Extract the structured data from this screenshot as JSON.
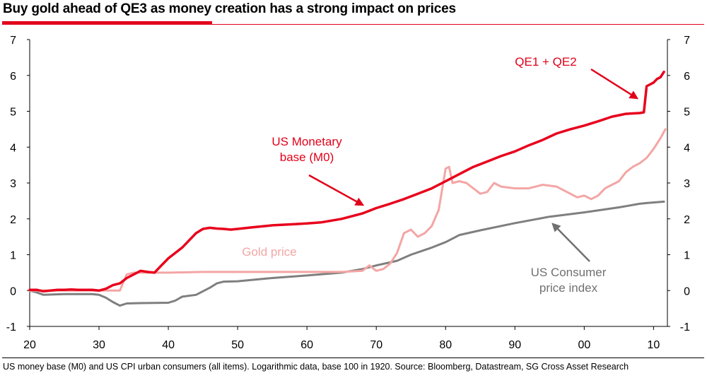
{
  "title": "Buy gold ahead of QE3 as money creation has a strong impact on prices",
  "footnote": "US money base (M0) and US CPI urban consumers (all items). Logarithmic data, base 100 in 1920. Source: Bloomberg, Datastream, SG Cross Asset Research",
  "colors": {
    "accent": "#e1001a",
    "monetary_base": "#e8001c",
    "gold": "#f4a5a5",
    "cpi": "#7f7f7f"
  },
  "chart_data": {
    "type": "line",
    "x_tick_labels": [
      "20",
      "30",
      "40",
      "50",
      "60",
      "70",
      "80",
      "90",
      "00",
      "10"
    ],
    "x_tick_years": [
      1920,
      1930,
      1940,
      1950,
      1960,
      1970,
      1980,
      1990,
      2000,
      2010
    ],
    "xlim": [
      1920,
      2012
    ],
    "y_ticks": [
      -1,
      0,
      1,
      2,
      3,
      4,
      5,
      6,
      7
    ],
    "ylim": [
      -1,
      7
    ],
    "y_right_ticks": [
      -1,
      0,
      1,
      2,
      3,
      4,
      5,
      6,
      7
    ],
    "grid": false,
    "series": [
      {
        "key": "monetary_base",
        "x": [
          1920,
          1921,
          1922,
          1923,
          1924,
          1925,
          1926,
          1927,
          1928,
          1929,
          1930,
          1931,
          1932,
          1933,
          1934,
          1935,
          1936,
          1937,
          1938,
          1939,
          1940,
          1941,
          1942,
          1943,
          1944,
          1945,
          1946,
          1947,
          1948,
          1949,
          1950,
          1952,
          1955,
          1958,
          1960,
          1962,
          1965,
          1968,
          1970,
          1972,
          1974,
          1976,
          1978,
          1980,
          1982,
          1984,
          1986,
          1988,
          1990,
          1992,
          1994,
          1996,
          1998,
          2000,
          2002,
          2004,
          2006,
          2008,
          2008.6,
          2009,
          2010,
          2010.5,
          2011,
          2011.5
        ],
        "y": [
          0.02,
          0.02,
          -0.02,
          0.0,
          0.02,
          0.02,
          0.03,
          0.02,
          0.02,
          0.02,
          0.0,
          0.05,
          0.15,
          0.2,
          0.35,
          0.45,
          0.55,
          0.52,
          0.5,
          0.7,
          0.9,
          1.05,
          1.2,
          1.4,
          1.6,
          1.72,
          1.75,
          1.73,
          1.72,
          1.7,
          1.72,
          1.76,
          1.82,
          1.85,
          1.87,
          1.9,
          2.0,
          2.15,
          2.3,
          2.42,
          2.55,
          2.7,
          2.85,
          3.05,
          3.25,
          3.45,
          3.6,
          3.75,
          3.88,
          4.05,
          4.2,
          4.38,
          4.5,
          4.6,
          4.72,
          4.85,
          4.93,
          4.95,
          4.97,
          5.7,
          5.8,
          5.9,
          5.95,
          6.1
        ]
      },
      {
        "key": "gold",
        "x": [
          1920,
          1933,
          1934,
          1935,
          1937,
          1938,
          1940,
          1945,
          1950,
          1960,
          1965,
          1968,
          1969,
          1970,
          1971,
          1972,
          1973,
          1974,
          1975,
          1976,
          1977,
          1978,
          1979,
          1980,
          1980.5,
          1981,
          1982,
          1983,
          1984,
          1985,
          1986,
          1987,
          1988,
          1990,
          1992,
          1994,
          1996,
          1998,
          1999,
          2000,
          2001,
          2002,
          2003,
          2004,
          2005,
          2006,
          2007,
          2008,
          2009,
          2010,
          2011,
          2011.7
        ],
        "y": [
          0,
          0,
          0.45,
          0.5,
          0.5,
          0.5,
          0.5,
          0.52,
          0.52,
          0.52,
          0.52,
          0.55,
          0.7,
          0.55,
          0.6,
          0.75,
          1.05,
          1.6,
          1.7,
          1.5,
          1.6,
          1.8,
          2.25,
          3.4,
          3.45,
          3.0,
          3.05,
          3.0,
          2.85,
          2.7,
          2.75,
          3.0,
          2.9,
          2.85,
          2.85,
          2.95,
          2.9,
          2.7,
          2.6,
          2.65,
          2.55,
          2.65,
          2.85,
          2.95,
          3.05,
          3.3,
          3.45,
          3.55,
          3.7,
          3.95,
          4.25,
          4.5
        ]
      },
      {
        "key": "cpi",
        "x": [
          1920,
          1921,
          1922,
          1925,
          1929,
          1930,
          1931,
          1932,
          1933,
          1934,
          1936,
          1940,
          1941,
          1942,
          1944,
          1946,
          1947,
          1948,
          1950,
          1955,
          1960,
          1965,
          1968,
          1970,
          1973,
          1975,
          1978,
          1980,
          1982,
          1985,
          1990,
          1995,
          2000,
          2005,
          2008,
          2009,
          2011.5
        ],
        "y": [
          0,
          -0.05,
          -0.12,
          -0.1,
          -0.1,
          -0.12,
          -0.2,
          -0.32,
          -0.42,
          -0.36,
          -0.35,
          -0.34,
          -0.28,
          -0.17,
          -0.12,
          0.08,
          0.2,
          0.25,
          0.26,
          0.35,
          0.42,
          0.5,
          0.6,
          0.7,
          0.83,
          1.0,
          1.2,
          1.35,
          1.55,
          1.68,
          1.88,
          2.06,
          2.18,
          2.32,
          2.42,
          2.44,
          2.48
        ]
      }
    ],
    "annotations": [
      {
        "key": "monetary_base",
        "lines": [
          "US Monetary",
          "base (M0)"
        ]
      },
      {
        "key": "qe",
        "lines": [
          "QE1 + QE2"
        ]
      },
      {
        "key": "gold",
        "lines": [
          "Gold price"
        ]
      },
      {
        "key": "cpi",
        "lines": [
          "US Consumer",
          "price index"
        ]
      }
    ]
  }
}
